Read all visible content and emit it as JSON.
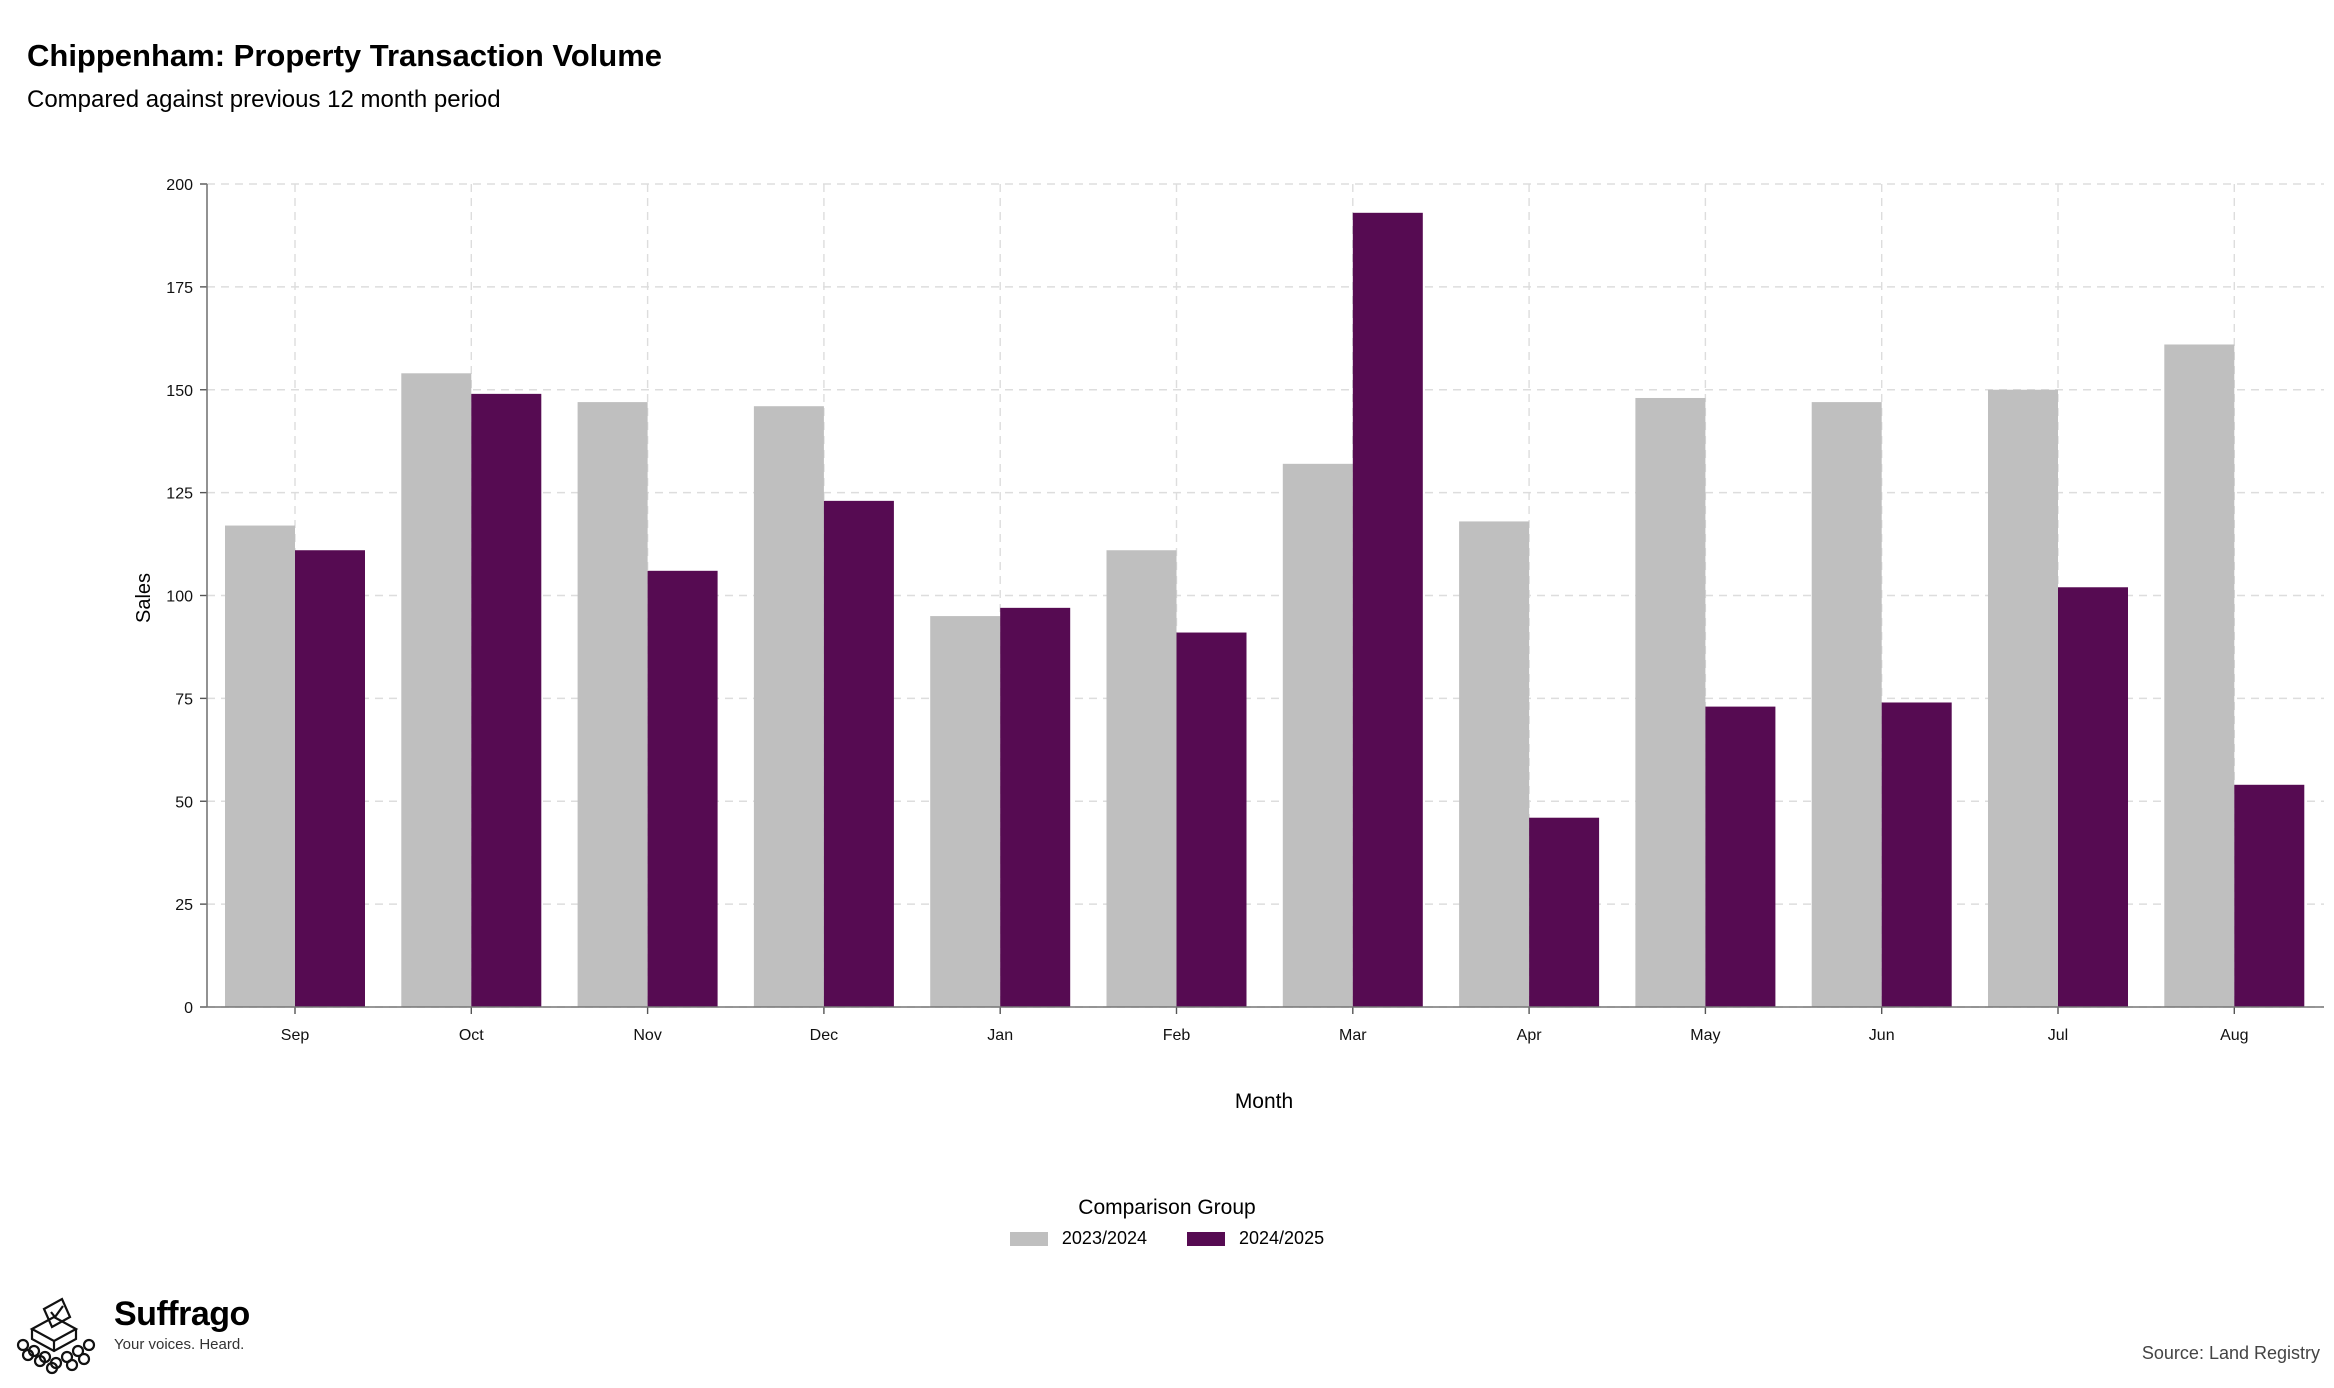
{
  "header": {
    "title": "Chippenham: Property Transaction Volume",
    "subtitle": "Compared against previous 12 month period"
  },
  "chart_data": {
    "type": "bar",
    "categories": [
      "Sep",
      "Oct",
      "Nov",
      "Dec",
      "Jan",
      "Feb",
      "Mar",
      "Apr",
      "May",
      "Jun",
      "Jul",
      "Aug"
    ],
    "series": [
      {
        "name": "2023/2024",
        "color": "#bfbfbf",
        "values": [
          117,
          154,
          147,
          146,
          95,
          111,
          132,
          118,
          148,
          147,
          150,
          161
        ]
      },
      {
        "name": "2024/2025",
        "color": "#560b52",
        "values": [
          111,
          149,
          106,
          123,
          97,
          91,
          193,
          46,
          73,
          74,
          102,
          54
        ]
      }
    ],
    "xlabel": "Month",
    "ylabel": "Sales",
    "ylim": [
      0,
      200
    ],
    "yticks": [
      0,
      25,
      50,
      75,
      100,
      125,
      150,
      175,
      200
    ],
    "grid": true,
    "legend_title": "Comparison Group",
    "legend_position": "bottom"
  },
  "footer": {
    "logo_name": "Suffrago",
    "logo_tagline": "Your voices. Heard.",
    "source": "Source: Land Registry"
  }
}
